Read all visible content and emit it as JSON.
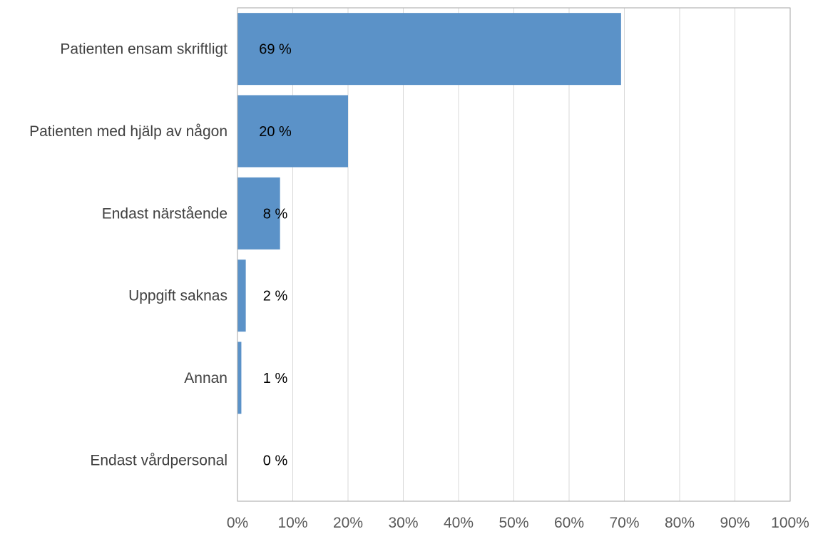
{
  "chart_data": {
    "type": "bar",
    "orientation": "horizontal",
    "categories": [
      "Patienten ensam skriftligt",
      "Patienten med hjälp av någon",
      "Endast närstående",
      "Uppgift saknas",
      "Annan",
      "Endast vårdpersonal"
    ],
    "values": [
      69.4,
      20.0,
      7.7,
      1.5,
      0.7,
      0.0
    ],
    "data_labels": [
      "69 %",
      "20 %",
      "8 %",
      "2 %",
      "1 %",
      "0 %"
    ],
    "xlim": [
      0,
      100
    ],
    "x_ticks": [
      "0%",
      "10%",
      "20%",
      "30%",
      "40%",
      "50%",
      "60%",
      "70%",
      "80%",
      "90%",
      "100%"
    ],
    "grid": "vertical",
    "bar_color": "#5b92c8",
    "title": "",
    "xlabel": "",
    "ylabel": ""
  }
}
